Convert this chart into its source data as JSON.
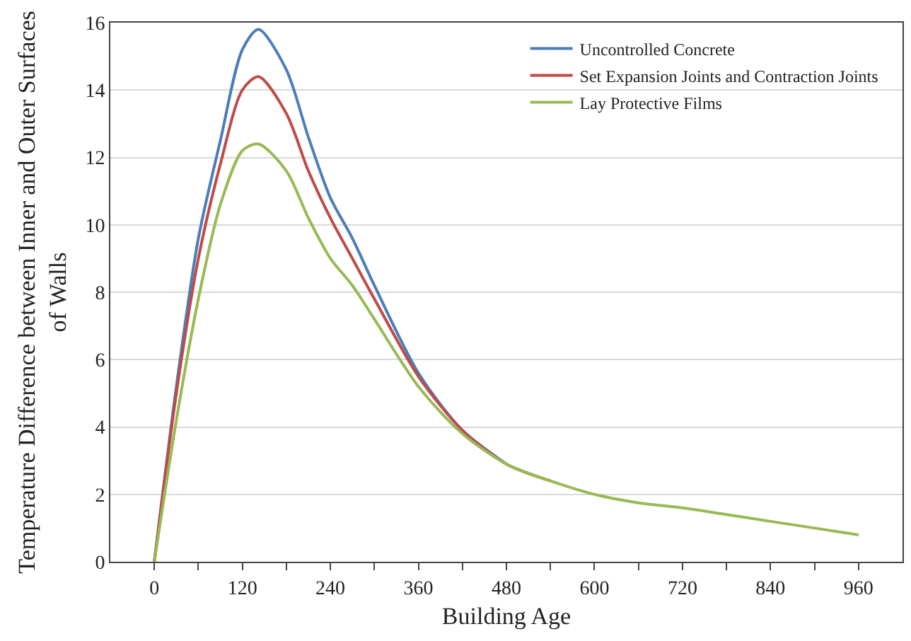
{
  "chart_data": {
    "type": "line",
    "xlabel": "Building Age",
    "ylabel": "Temperature Difference between Inner and Outer Surfaces\nof Walls",
    "x": [
      0,
      30,
      60,
      90,
      120,
      142,
      180,
      210,
      240,
      270,
      300,
      360,
      420,
      480,
      540,
      600,
      660,
      720,
      780,
      840,
      900,
      960
    ],
    "series": [
      {
        "name": "Uncontrolled Concrete",
        "color": "#4a7ebb",
        "values": [
          0,
          5.2,
          9.6,
          12.5,
          15.2,
          15.8,
          14.6,
          12.6,
          10.8,
          9.6,
          8.2,
          5.6,
          3.9,
          2.9,
          null,
          null,
          null,
          null,
          null,
          null,
          null,
          null
        ]
      },
      {
        "name": "Set Expansion Joints and Contraction Joints",
        "color": "#be4b48",
        "values": [
          0,
          5.0,
          9.0,
          11.8,
          14.0,
          14.4,
          13.3,
          11.6,
          10.2,
          9.0,
          7.8,
          5.5,
          3.9,
          2.9,
          2.4,
          null,
          null,
          null,
          null,
          null,
          null,
          null
        ]
      },
      {
        "name": "Lay Protective Films",
        "color": "#98b954",
        "values": [
          0,
          4.2,
          7.8,
          10.6,
          12.2,
          12.4,
          11.6,
          10.2,
          9.0,
          8.2,
          7.2,
          5.2,
          3.8,
          2.9,
          2.4,
          2.0,
          1.75,
          1.6,
          1.4,
          1.2,
          1.0,
          0.8
        ]
      }
    ],
    "xlim": [
      -60,
      1020
    ],
    "xticks": [
      0,
      {
        "value": 60,
        "label": null
      },
      120,
      {
        "value": 180,
        "label": null
      },
      240,
      {
        "value": 300,
        "label": null
      },
      360,
      {
        "value": 420,
        "label": null
      },
      480,
      {
        "value": 540,
        "label": null
      },
      600,
      {
        "value": 660,
        "label": null
      },
      720,
      {
        "value": 780,
        "label": null
      },
      840,
      {
        "value": 900,
        "label": null
      },
      960
    ],
    "ylim": [
      0,
      16
    ],
    "yticks": [
      0,
      2,
      4,
      6,
      8,
      10,
      12,
      14,
      16
    ],
    "grid": "y",
    "legend": "top right",
    "marker": "none",
    "line_style": "solid"
  }
}
